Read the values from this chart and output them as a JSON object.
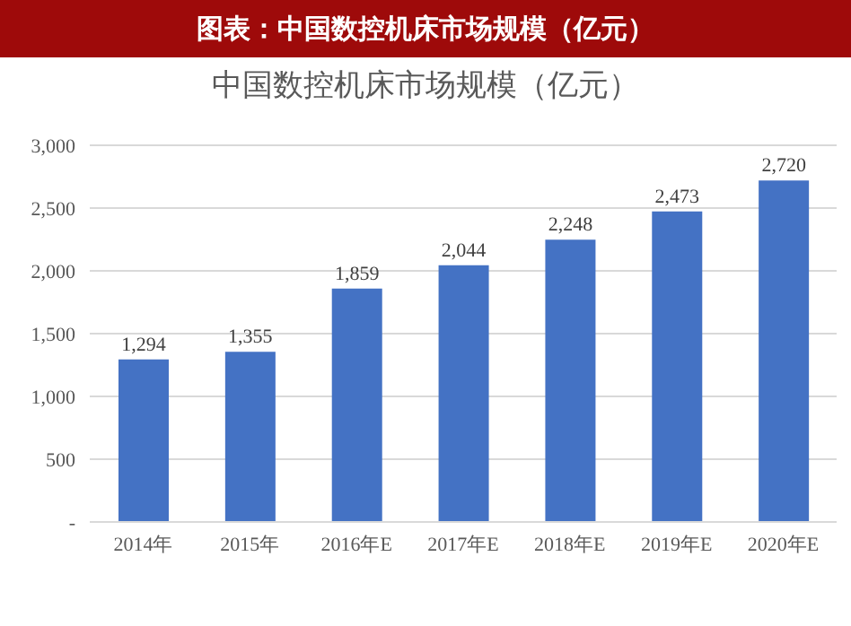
{
  "chart_data": {
    "type": "bar",
    "title": "图表：中国数控机床市场规模（亿元）",
    "subtitle": "中国数控机床市场规模（亿元）",
    "categories": [
      "2014年",
      "2015年",
      "2016年E",
      "2017年E",
      "2018年E",
      "2019年E",
      "2020年E"
    ],
    "values": [
      1294,
      1355,
      1859,
      2044,
      2248,
      2473,
      2720
    ],
    "value_labels": [
      "1,294",
      "1,355",
      "1,859",
      "2,044",
      "2,248",
      "2,473",
      "2,720"
    ],
    "color": "#4472c4",
    "ylim": [
      0,
      3000
    ],
    "yticks": [
      {
        "value": 0,
        "label": "-"
      },
      {
        "value": 500,
        "label": "500"
      },
      {
        "value": 1000,
        "label": "1,000"
      },
      {
        "value": 1500,
        "label": "1,500"
      },
      {
        "value": 2000,
        "label": "2,000"
      },
      {
        "value": 2500,
        "label": "2,500"
      },
      {
        "value": 3000,
        "label": "3,000"
      }
    ],
    "grid": "y",
    "legend": false
  }
}
